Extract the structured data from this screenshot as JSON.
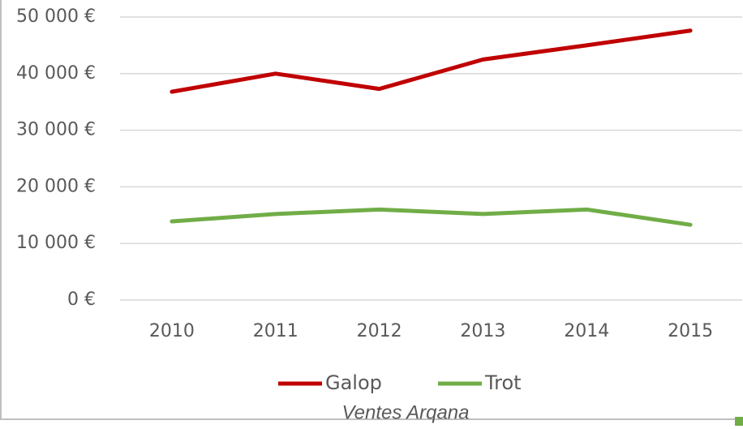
{
  "chart_data": {
    "type": "line",
    "categories": [
      "2010",
      "2011",
      "2012",
      "2013",
      "2014",
      "2015"
    ],
    "series": [
      {
        "name": "Galop",
        "color": "#c00000",
        "values": [
          36800,
          40000,
          37300,
          42500,
          45000,
          47600
        ]
      },
      {
        "name": "Trot",
        "color": "#70ad47",
        "values": [
          13900,
          15200,
          16000,
          15200,
          16000,
          13300
        ]
      }
    ],
    "ylim": [
      0,
      50000
    ],
    "yticks": [
      {
        "value": 0,
        "label": "0 €"
      },
      {
        "value": 10000,
        "label": "10 000 €"
      },
      {
        "value": 20000,
        "label": "20 000 €"
      },
      {
        "value": 30000,
        "label": "30 000 €"
      },
      {
        "value": 40000,
        "label": "40 000 €"
      },
      {
        "value": 50000,
        "label": "50 000 €"
      }
    ],
    "grid": true,
    "legend": "bottom",
    "caption": "Ventes Arqana"
  }
}
